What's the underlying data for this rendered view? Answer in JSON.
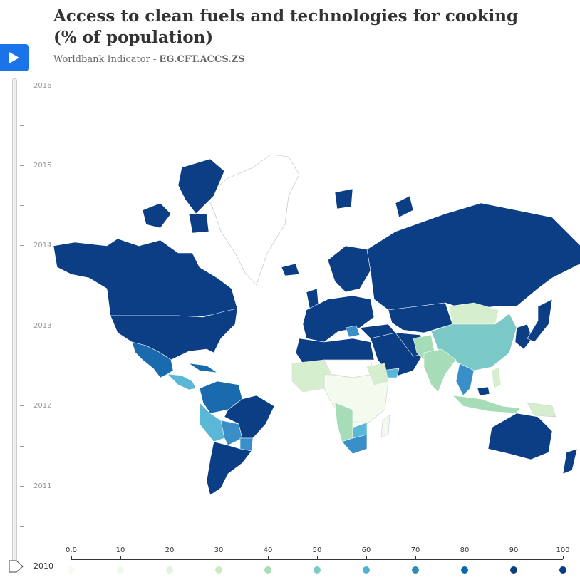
{
  "header": {
    "title": "Access to clean fuels and technologies for cooking (% of population)",
    "subtitle_prefix": "Worldbank Indicator - ",
    "indicator_code": "EG.CFT.ACCS.ZS"
  },
  "controls": {
    "play_icon": "play-icon"
  },
  "timeline": {
    "years": [
      "2016",
      "2015",
      "2014",
      "2013",
      "2012",
      "2011",
      "2010"
    ],
    "selected_year": "2010"
  },
  "legend": {
    "ticks": [
      "0.0",
      "10",
      "20",
      "30",
      "40",
      "50",
      "60",
      "70",
      "80",
      "90",
      "100"
    ],
    "colors": [
      "#f7fcf0",
      "#f0f9e8",
      "#e0f3db",
      "#ccebc5",
      "#a8ddb5",
      "#7bccc4",
      "#4eb3d3",
      "#2b8cbe",
      "#0868ac",
      "#084081",
      "#0a3d85"
    ]
  },
  "map_colors": {
    "very_high": "#0b3e85",
    "high": "#1a6aae",
    "mid_high": "#3a8fc9",
    "mid": "#5ab7d6",
    "china": "#7ac9c6",
    "mid_low": "#a6dcb7",
    "low": "#d5eecd",
    "very_low": "#f3fbee",
    "no_data": "#ffffff"
  }
}
